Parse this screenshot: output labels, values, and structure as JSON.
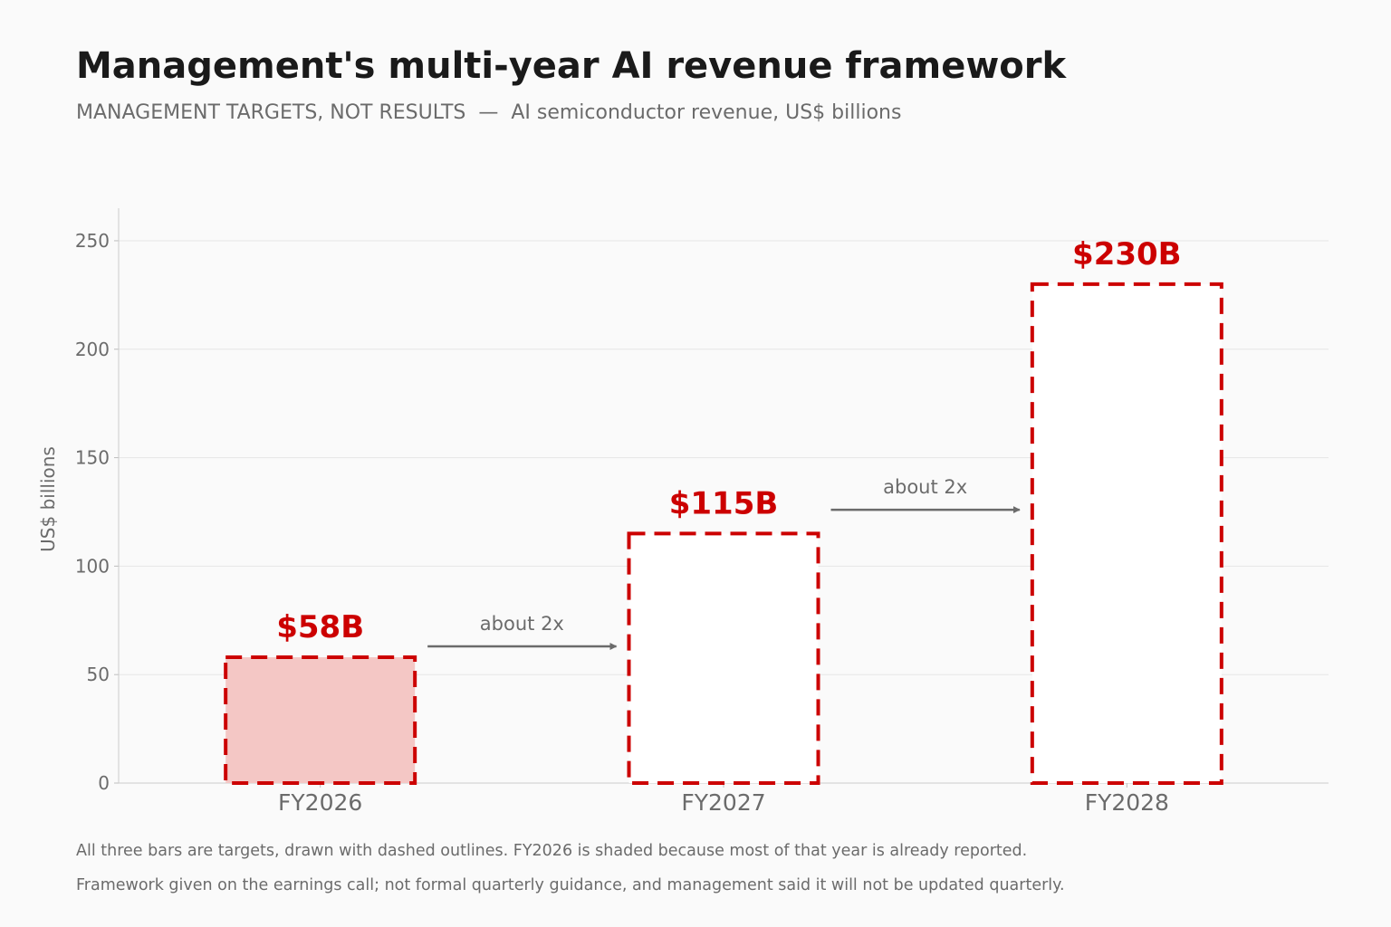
{
  "header": {
    "title": "Management's multi-year AI revenue framework",
    "subtitle": "MANAGEMENT TARGETS, NOT RESULTS  —  AI semiconductor revenue, US$ billions"
  },
  "chart_data": {
    "type": "bar",
    "categories": [
      "FY2026",
      "FY2027",
      "FY2028"
    ],
    "values": [
      58,
      115,
      230
    ],
    "data_labels": [
      "$58B",
      "$115B",
      "$230B"
    ],
    "shaded": [
      true,
      false,
      false
    ],
    "ylabel": "US$ billions",
    "xlabel": "",
    "ylim": [
      0,
      265
    ],
    "yticks": [
      0,
      50,
      100,
      150,
      200,
      250
    ],
    "grid": true,
    "annotations": [
      {
        "text": "about 2x",
        "from": "FY2026",
        "to": "FY2027",
        "y": 63
      },
      {
        "text": "about 2x",
        "from": "FY2027",
        "to": "FY2028",
        "y": 126
      }
    ]
  },
  "colors": {
    "accent": "#cc0000",
    "shade_fill": "#f4c7c5",
    "target_fill": "#ffffff",
    "text_muted": "#6b6b6b",
    "grid": "#e6e6e6"
  },
  "footnotes": [
    "All three bars are targets, drawn with dashed outlines. FY2026 is shaded because most of that year is already reported.",
    "Framework given on the earnings call; not formal quarterly guidance, and management said it will not be updated quarterly."
  ]
}
